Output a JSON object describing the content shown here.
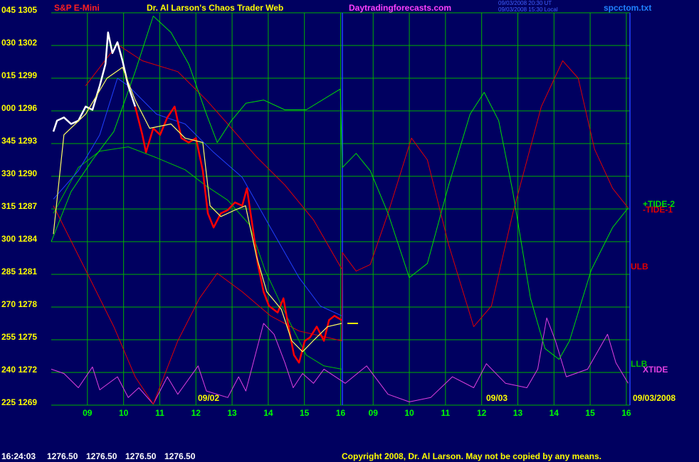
{
  "chart_data": {
    "type": "line",
    "title": "S&P E-Mini",
    "subtitle": "Dr. Al Larson's Chaos Trader Web",
    "website": "Daytradingforecasts.com",
    "timestamps": [
      "09/03/2008 20:30 UT",
      "09/03/2008 15:30 Local"
    ],
    "file_name": "spcctom.txt",
    "date_labels": [
      "09/02",
      "09/03",
      "09/03/2008"
    ],
    "status": [
      "16:24:03",
      "1276.50",
      "1276.50",
      "1276.50",
      "1276.50"
    ],
    "copyright": "Copyright 2008, Dr. Al Larson. May not be copied by any means.",
    "grid": true,
    "grid_color": "#00b000",
    "xlim": [
      8,
      24
    ],
    "ylim": [
      1269,
      1305
    ],
    "xticks": [
      {
        "value": 9,
        "label": "09"
      },
      10,
      11,
      12,
      13,
      14,
      15,
      16,
      {
        "value": 16.9,
        "label": "09"
      },
      {
        "value": 17.9,
        "label": "10"
      },
      {
        "value": 18.9,
        "label": "11"
      },
      {
        "value": 19.9,
        "label": "12"
      },
      {
        "value": 20.9,
        "label": "13"
      },
      {
        "value": 21.9,
        "label": "14"
      },
      {
        "value": 22.9,
        "label": "15"
      },
      {
        "value": 23.9,
        "label": "16"
      }
    ],
    "yticks": [
      {
        "value": 1305,
        "label": "045 1305"
      },
      {
        "value": 1302,
        "label": "030 1302"
      },
      {
        "value": 1299,
        "label": "015 1299"
      },
      {
        "value": 1296,
        "label": "000 1296"
      },
      {
        "value": 1293,
        "label": "345 1293"
      },
      {
        "value": 1290,
        "label": "330 1290"
      },
      {
        "value": 1287,
        "label": "315 1287"
      },
      {
        "value": 1284,
        "label": "300 1284"
      },
      {
        "value": 1281,
        "label": "285 1281"
      },
      {
        "value": 1278,
        "label": "270 1278"
      },
      {
        "value": 1275,
        "label": "255 1275"
      },
      {
        "value": 1272,
        "label": "240 1272"
      },
      {
        "value": 1269,
        "label": "225 1269"
      }
    ],
    "session_breaks": [
      16.05
    ],
    "last_price": 1276.5,
    "series": [
      {
        "color": "#ffffff",
        "x": [
          8.06,
          8.16,
          8.35,
          8.55,
          8.75,
          8.95,
          9.14,
          9.34,
          9.5,
          9.57,
          9.69,
          9.83,
          9.97,
          10.13,
          10.32
        ],
        "values": [
          1294.1,
          1295.1,
          1295.4,
          1294.8,
          1295.1,
          1296.4,
          1296.1,
          1298.3,
          1300.3,
          1303.2,
          1301.3,
          1302.3,
          1300.6,
          1298.3,
          1296.4
        ]
      },
      {
        "color": "#ff0000",
        "x": [
          10.32,
          10.52,
          10.62,
          10.82,
          11.01,
          11.21,
          11.41,
          11.6,
          11.8,
          12.0,
          12.19,
          12.33,
          12.49,
          12.69,
          12.88,
          13.08,
          13.28,
          13.41,
          13.57,
          13.71,
          13.87,
          14.02,
          14.26,
          14.42,
          14.56,
          14.71,
          14.85,
          15.01,
          15.15,
          15.34,
          15.54,
          15.68,
          15.83,
          16.03
        ],
        "values": [
          1296.4,
          1293.8,
          1292.2,
          1294.4,
          1293.8,
          1295.4,
          1296.4,
          1293.5,
          1293.1,
          1293.5,
          1290.5,
          1286.6,
          1285.3,
          1286.6,
          1286.9,
          1287.6,
          1287.3,
          1288.9,
          1285.3,
          1282.0,
          1279.4,
          1278.1,
          1277.5,
          1278.8,
          1276.2,
          1273.6,
          1272.9,
          1274.9,
          1275.2,
          1276.2,
          1274.9,
          1276.8,
          1277.2,
          1276.8
        ]
      },
      {
        "color": "#ffff60",
        "x": [
          8.06,
          8.35,
          8.95,
          9.54,
          9.97,
          10.32,
          10.72,
          11.31,
          11.7,
          12.19,
          12.39,
          12.69,
          13.08,
          13.37,
          13.67,
          13.96,
          14.36,
          14.65,
          14.95,
          15.24,
          15.64,
          16.03
        ],
        "values": [
          1284.7,
          1293.8,
          1295.7,
          1299.0,
          1300.0,
          1297.0,
          1294.4,
          1294.8,
          1293.5,
          1293.1,
          1287.3,
          1286.3,
          1286.9,
          1287.3,
          1282.7,
          1279.4,
          1277.8,
          1274.9,
          1273.9,
          1274.9,
          1276.2,
          1276.5
        ]
      },
      {
        "color": "#2040ff",
        "x": [
          8.06,
          8.75,
          9.34,
          9.83,
          10.13,
          10.91,
          11.7,
          12.49,
          13.28,
          14.06,
          14.85,
          15.44,
          16.03
        ],
        "values": [
          1287.9,
          1290.5,
          1293.8,
          1299.0,
          1298.3,
          1295.7,
          1294.8,
          1292.2,
          1289.9,
          1285.3,
          1280.7,
          1278.1,
          1277.2
        ]
      },
      {
        "name": "ULB",
        "color": "#e00000",
        "x": [
          8.95,
          9.83,
          10.52,
          11.5,
          12.29,
          12.88,
          13.67,
          14.46,
          15.25,
          16.03
        ],
        "values": [
          1298.3,
          1302.1,
          1300.6,
          1299.6,
          1297.0,
          1294.8,
          1291.8,
          1289.2,
          1286.0,
          1281.5
        ]
      },
      {
        "name": "-TIDE-1",
        "color": "#e00000",
        "x": [
          8.06,
          8.95,
          9.73,
          10.32,
          10.82,
          11.5,
          12.1,
          12.59,
          13.28,
          14.06,
          14.85,
          15.64,
          16.03,
          16.05,
          16.43,
          16.82,
          17.31,
          17.96,
          18.4,
          18.99,
          19.68,
          20.17,
          20.76,
          21.55,
          22.14,
          22.57,
          23.02,
          23.52,
          23.95
        ],
        "values": [
          1287.3,
          1281.4,
          1276.2,
          1271.6,
          1269.1,
          1274.9,
          1278.8,
          1281.1,
          1279.4,
          1277.2,
          1275.8,
          1275.2,
          1274.9,
          1283.0,
          1281.3,
          1281.9,
          1286.6,
          1293.5,
          1291.5,
          1283.7,
          1276.2,
          1278.1,
          1286.6,
          1296.4,
          1300.6,
          1299.0,
          1292.5,
          1288.9,
          1287.1
        ]
      },
      {
        "name": "LLB",
        "color": "#00c000",
        "x": [
          8.06,
          8.75,
          9.34,
          10.13,
          10.91,
          11.7,
          12.29,
          12.88,
          13.47,
          13.91,
          14.46,
          15.05,
          15.54,
          16.03
        ],
        "values": [
          1286.6,
          1290.8,
          1292.3,
          1292.7,
          1291.7,
          1290.6,
          1289.1,
          1287.8,
          1285.6,
          1281.4,
          1277.5,
          1273.6,
          1272.6,
          1272.3
        ]
      },
      {
        "name": "+TIDE-2",
        "color": "#00e000",
        "x": [
          8.0,
          8.55,
          9.14,
          9.73,
          10.32,
          10.82,
          11.31,
          11.8,
          12.29,
          12.59,
          12.98,
          13.38,
          13.87,
          14.46,
          15.05,
          15.99,
          16.05,
          16.43,
          16.82,
          17.31,
          17.9,
          18.4,
          18.99,
          19.58,
          19.97,
          20.37,
          20.76,
          21.25,
          21.65,
          22.04,
          22.33,
          22.93,
          23.52,
          23.95
        ],
        "values": [
          1284.0,
          1288.6,
          1291.5,
          1294.1,
          1299.6,
          1304.7,
          1303.2,
          1300.3,
          1295.7,
          1293.1,
          1295.1,
          1296.7,
          1297.0,
          1296.1,
          1296.1,
          1298.0,
          1290.8,
          1292.1,
          1290.5,
          1286.6,
          1280.7,
          1282.0,
          1289.2,
          1295.7,
          1297.7,
          1295.1,
          1288.6,
          1278.8,
          1274.2,
          1273.2,
          1274.9,
          1281.4,
          1285.3,
          1287.1
        ]
      },
      {
        "name": "XTIDE",
        "color": "#e040e0",
        "x": [
          8.0,
          8.35,
          8.75,
          9.14,
          9.34,
          9.83,
          10.13,
          10.42,
          10.82,
          11.21,
          11.5,
          12.06,
          12.29,
          12.88,
          13.18,
          13.38,
          13.87,
          14.16,
          14.46,
          14.69,
          14.95,
          15.25,
          15.54,
          16.13,
          16.72,
          17.31,
          17.9,
          18.49,
          19.09,
          19.68,
          20.03,
          20.56,
          21.15,
          21.45,
          21.7,
          21.94,
          22.24,
          22.83,
          23.38,
          23.61,
          23.95
        ],
        "values": [
          1272.3,
          1271.9,
          1270.6,
          1272.5,
          1270.4,
          1271.6,
          1269.7,
          1270.6,
          1269.1,
          1271.6,
          1270.0,
          1272.6,
          1270.3,
          1269.7,
          1271.6,
          1270.3,
          1276.5,
          1275.5,
          1272.9,
          1270.6,
          1271.9,
          1271.0,
          1272.3,
          1271.0,
          1272.6,
          1270.0,
          1269.3,
          1269.7,
          1271.6,
          1270.6,
          1272.8,
          1271.0,
          1270.6,
          1272.3,
          1277.0,
          1274.9,
          1271.6,
          1272.3,
          1275.5,
          1272.9,
          1271.0
        ]
      }
    ]
  }
}
